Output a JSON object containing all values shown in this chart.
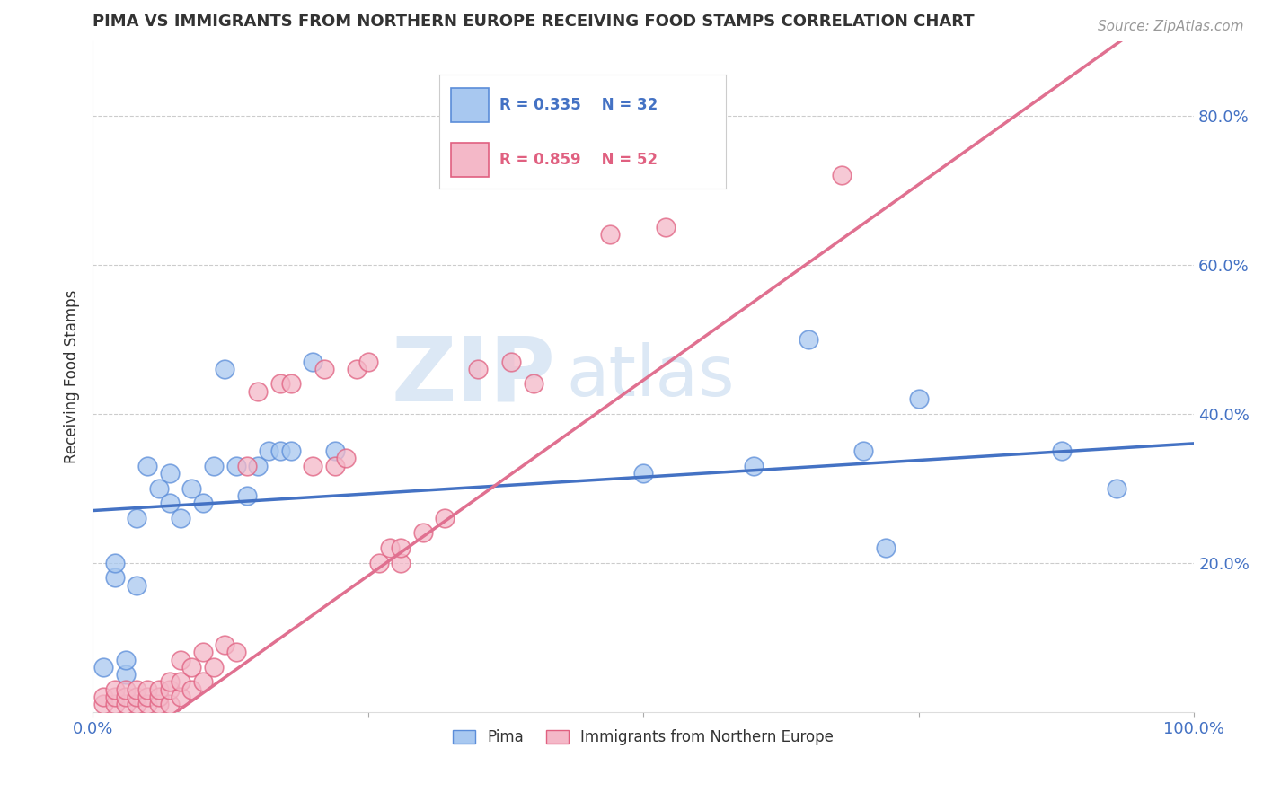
{
  "title": "PIMA VS IMMIGRANTS FROM NORTHERN EUROPE RECEIVING FOOD STAMPS CORRELATION CHART",
  "source": "Source: ZipAtlas.com",
  "ylabel": "Receiving Food Stamps",
  "xlim": [
    0.0,
    1.0
  ],
  "ylim": [
    0.0,
    0.9
  ],
  "ytick_labels": [
    "20.0%",
    "40.0%",
    "60.0%",
    "80.0%"
  ],
  "ytick_values": [
    0.2,
    0.4,
    0.6,
    0.8
  ],
  "watermark_zip": "ZIP",
  "watermark_atlas": "atlas",
  "blue_fill": "#A8C8F0",
  "blue_edge": "#5B8DD9",
  "pink_fill": "#F4B8C8",
  "pink_edge": "#E06080",
  "blue_line_color": "#4472C4",
  "pink_line_color": "#E07090",
  "legend_r_blue": "R = 0.335",
  "legend_n_blue": "N = 32",
  "legend_r_pink": "R = 0.859",
  "legend_n_pink": "N = 52",
  "legend_label_blue": "Pima",
  "legend_label_pink": "Immigrants from Northern Europe",
  "pima_x": [
    0.01,
    0.02,
    0.02,
    0.03,
    0.03,
    0.04,
    0.04,
    0.05,
    0.06,
    0.07,
    0.07,
    0.08,
    0.09,
    0.1,
    0.11,
    0.12,
    0.13,
    0.14,
    0.15,
    0.16,
    0.17,
    0.18,
    0.2,
    0.22,
    0.5,
    0.6,
    0.65,
    0.7,
    0.72,
    0.75,
    0.88,
    0.93
  ],
  "pima_y": [
    0.06,
    0.18,
    0.2,
    0.05,
    0.07,
    0.17,
    0.26,
    0.33,
    0.3,
    0.28,
    0.32,
    0.26,
    0.3,
    0.28,
    0.33,
    0.46,
    0.33,
    0.29,
    0.33,
    0.35,
    0.35,
    0.35,
    0.47,
    0.35,
    0.32,
    0.33,
    0.5,
    0.35,
    0.22,
    0.42,
    0.35,
    0.3
  ],
  "pink_x": [
    0.01,
    0.01,
    0.02,
    0.02,
    0.02,
    0.03,
    0.03,
    0.03,
    0.04,
    0.04,
    0.04,
    0.05,
    0.05,
    0.05,
    0.06,
    0.06,
    0.06,
    0.07,
    0.07,
    0.07,
    0.08,
    0.08,
    0.08,
    0.09,
    0.09,
    0.1,
    0.1,
    0.11,
    0.12,
    0.13,
    0.14,
    0.15,
    0.17,
    0.18,
    0.2,
    0.21,
    0.22,
    0.23,
    0.24,
    0.25,
    0.26,
    0.27,
    0.28,
    0.28,
    0.3,
    0.32,
    0.35,
    0.38,
    0.4,
    0.47,
    0.52,
    0.68
  ],
  "pink_y": [
    0.01,
    0.02,
    0.01,
    0.02,
    0.03,
    0.01,
    0.02,
    0.03,
    0.01,
    0.02,
    0.03,
    0.01,
    0.02,
    0.03,
    0.01,
    0.02,
    0.03,
    0.01,
    0.03,
    0.04,
    0.02,
    0.04,
    0.07,
    0.03,
    0.06,
    0.04,
    0.08,
    0.06,
    0.09,
    0.08,
    0.33,
    0.43,
    0.44,
    0.44,
    0.33,
    0.46,
    0.33,
    0.34,
    0.46,
    0.47,
    0.2,
    0.22,
    0.2,
    0.22,
    0.24,
    0.26,
    0.46,
    0.47,
    0.44,
    0.64,
    0.65,
    0.72
  ],
  "grid_color": "#CCCCCC",
  "background_color": "#FFFFFF",
  "title_color": "#333333",
  "tick_label_color": "#4472C4"
}
